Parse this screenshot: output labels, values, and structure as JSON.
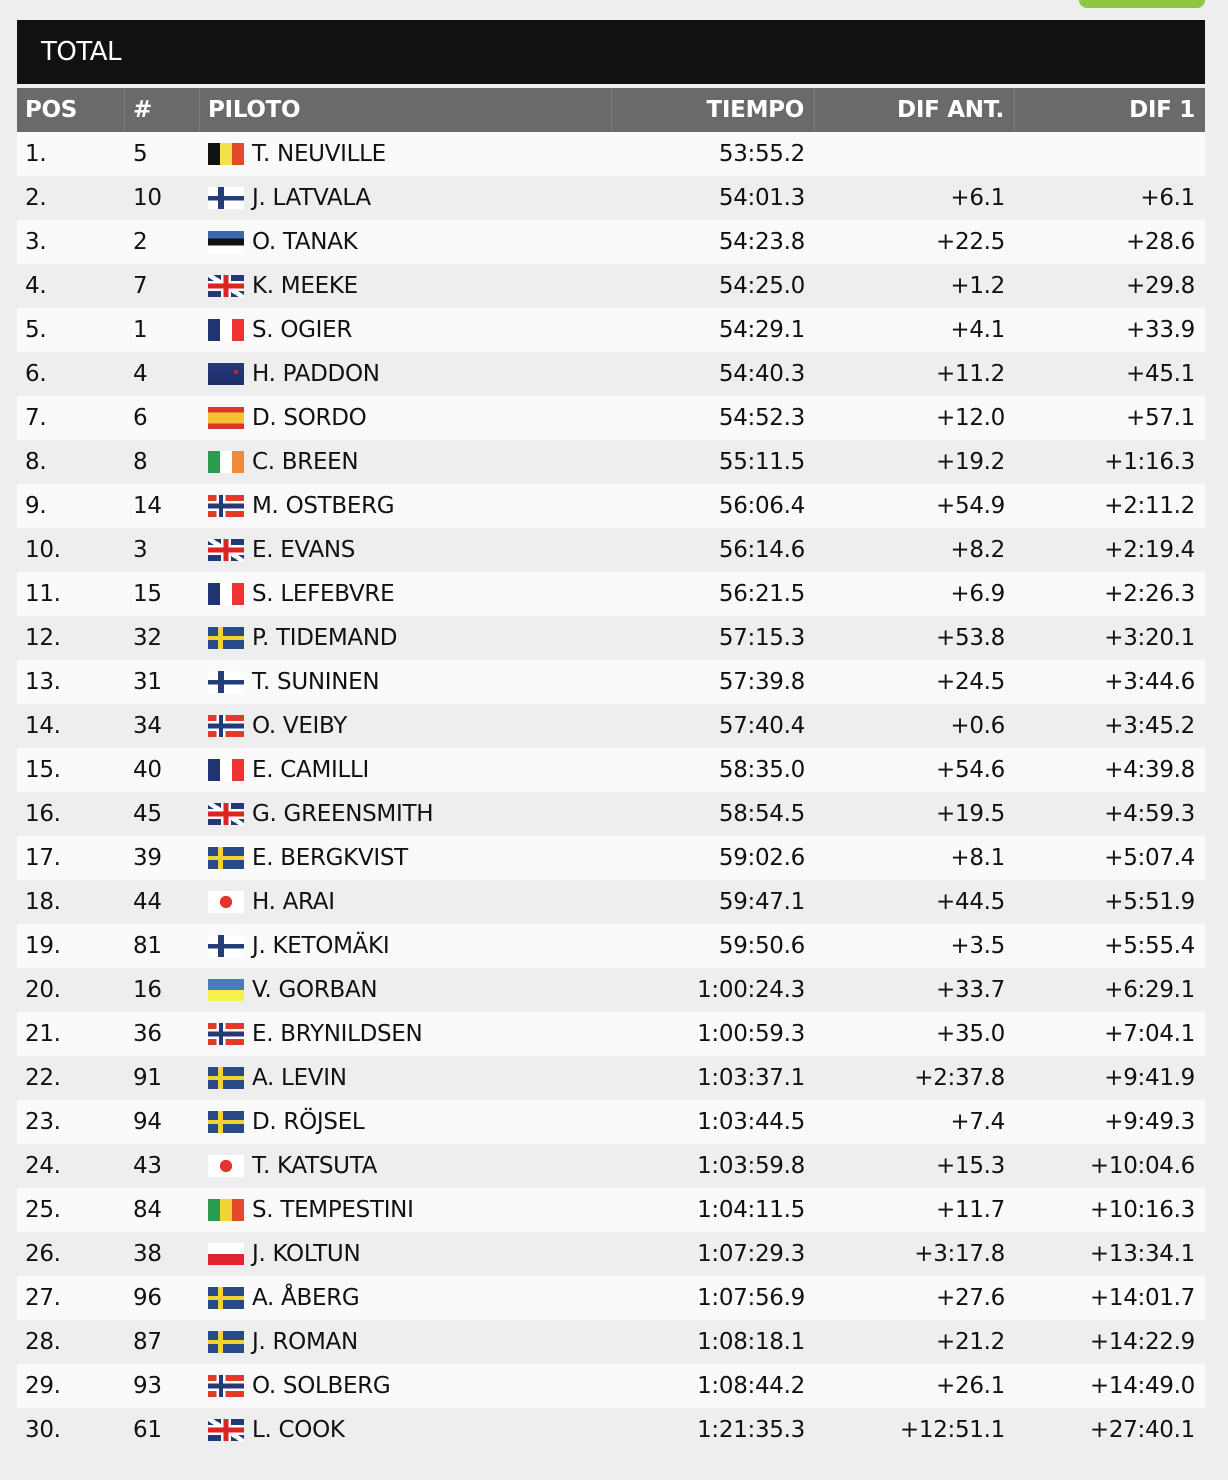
{
  "title": "TOTAL",
  "columns": {
    "pos": "POS",
    "num": "#",
    "pilot": "PILOTO",
    "time": "TIEMPO",
    "dif_prev": "DIF ANT.",
    "dif_first": "DIF 1"
  },
  "rows": [
    {
      "pos": "1.",
      "num": "5",
      "flag": "be",
      "pilot": "T. NEUVILLE",
      "time": "53:55.2",
      "dif_prev": "",
      "dif_first": ""
    },
    {
      "pos": "2.",
      "num": "10",
      "flag": "fi",
      "pilot": "J. LATVALA",
      "time": "54:01.3",
      "dif_prev": "+6.1",
      "dif_first": "+6.1"
    },
    {
      "pos": "3.",
      "num": "2",
      "flag": "ee",
      "pilot": "O. TANAK",
      "time": "54:23.8",
      "dif_prev": "+22.5",
      "dif_first": "+28.6"
    },
    {
      "pos": "4.",
      "num": "7",
      "flag": "gb",
      "pilot": "K. MEEKE",
      "time": "54:25.0",
      "dif_prev": "+1.2",
      "dif_first": "+29.8"
    },
    {
      "pos": "5.",
      "num": "1",
      "flag": "fr",
      "pilot": "S. OGIER",
      "time": "54:29.1",
      "dif_prev": "+4.1",
      "dif_first": "+33.9"
    },
    {
      "pos": "6.",
      "num": "4",
      "flag": "nz",
      "pilot": "H. PADDON",
      "time": "54:40.3",
      "dif_prev": "+11.2",
      "dif_first": "+45.1"
    },
    {
      "pos": "7.",
      "num": "6",
      "flag": "es",
      "pilot": "D. SORDO",
      "time": "54:52.3",
      "dif_prev": "+12.0",
      "dif_first": "+57.1"
    },
    {
      "pos": "8.",
      "num": "8",
      "flag": "ie",
      "pilot": "C. BREEN",
      "time": "55:11.5",
      "dif_prev": "+19.2",
      "dif_first": "+1:16.3"
    },
    {
      "pos": "9.",
      "num": "14",
      "flag": "no",
      "pilot": "M. OSTBERG",
      "time": "56:06.4",
      "dif_prev": "+54.9",
      "dif_first": "+2:11.2"
    },
    {
      "pos": "10.",
      "num": "3",
      "flag": "gb",
      "pilot": "E. EVANS",
      "time": "56:14.6",
      "dif_prev": "+8.2",
      "dif_first": "+2:19.4"
    },
    {
      "pos": "11.",
      "num": "15",
      "flag": "fr",
      "pilot": "S. LEFEBVRE",
      "time": "56:21.5",
      "dif_prev": "+6.9",
      "dif_first": "+2:26.3"
    },
    {
      "pos": "12.",
      "num": "32",
      "flag": "se",
      "pilot": "P. TIDEMAND",
      "time": "57:15.3",
      "dif_prev": "+53.8",
      "dif_first": "+3:20.1"
    },
    {
      "pos": "13.",
      "num": "31",
      "flag": "fi",
      "pilot": "T. SUNINEN",
      "time": "57:39.8",
      "dif_prev": "+24.5",
      "dif_first": "+3:44.6"
    },
    {
      "pos": "14.",
      "num": "34",
      "flag": "no",
      "pilot": "O. VEIBY",
      "time": "57:40.4",
      "dif_prev": "+0.6",
      "dif_first": "+3:45.2"
    },
    {
      "pos": "15.",
      "num": "40",
      "flag": "fr",
      "pilot": "E. CAMILLI",
      "time": "58:35.0",
      "dif_prev": "+54.6",
      "dif_first": "+4:39.8"
    },
    {
      "pos": "16.",
      "num": "45",
      "flag": "gb",
      "pilot": "G. GREENSMITH",
      "time": "58:54.5",
      "dif_prev": "+19.5",
      "dif_first": "+4:59.3"
    },
    {
      "pos": "17.",
      "num": "39",
      "flag": "se",
      "pilot": "E. BERGKVIST",
      "time": "59:02.6",
      "dif_prev": "+8.1",
      "dif_first": "+5:07.4"
    },
    {
      "pos": "18.",
      "num": "44",
      "flag": "jp",
      "pilot": "H. ARAI",
      "time": "59:47.1",
      "dif_prev": "+44.5",
      "dif_first": "+5:51.9"
    },
    {
      "pos": "19.",
      "num": "81",
      "flag": "fi",
      "pilot": "J. KETOMÄKI",
      "time": "59:50.6",
      "dif_prev": "+3.5",
      "dif_first": "+5:55.4"
    },
    {
      "pos": "20.",
      "num": "16",
      "flag": "ua",
      "pilot": "V. GORBAN",
      "time": "1:00:24.3",
      "dif_prev": "+33.7",
      "dif_first": "+6:29.1"
    },
    {
      "pos": "21.",
      "num": "36",
      "flag": "no",
      "pilot": "E. BRYNILDSEN",
      "time": "1:00:59.3",
      "dif_prev": "+35.0",
      "dif_first": "+7:04.1"
    },
    {
      "pos": "22.",
      "num": "91",
      "flag": "se",
      "pilot": "A. LEVIN",
      "time": "1:03:37.1",
      "dif_prev": "+2:37.8",
      "dif_first": "+9:41.9"
    },
    {
      "pos": "23.",
      "num": "94",
      "flag": "se",
      "pilot": "D. RÖJSEL",
      "time": "1:03:44.5",
      "dif_prev": "+7.4",
      "dif_first": "+9:49.3"
    },
    {
      "pos": "24.",
      "num": "43",
      "flag": "jp",
      "pilot": "T. KATSUTA",
      "time": "1:03:59.8",
      "dif_prev": "+15.3",
      "dif_first": "+10:04.6"
    },
    {
      "pos": "25.",
      "num": "84",
      "flag": "it",
      "pilot": "S. TEMPESTINI",
      "time": "1:04:11.5",
      "dif_prev": "+11.7",
      "dif_first": "+10:16.3"
    },
    {
      "pos": "26.",
      "num": "38",
      "flag": "pl",
      "pilot": "J. KOLTUN",
      "time": "1:07:29.3",
      "dif_prev": "+3:17.8",
      "dif_first": "+13:34.1"
    },
    {
      "pos": "27.",
      "num": "96",
      "flag": "se",
      "pilot": "A. ÅBERG",
      "time": "1:07:56.9",
      "dif_prev": "+27.6",
      "dif_first": "+14:01.7"
    },
    {
      "pos": "28.",
      "num": "87",
      "flag": "se",
      "pilot": "J. ROMAN",
      "time": "1:08:18.1",
      "dif_prev": "+21.2",
      "dif_first": "+14:22.9"
    },
    {
      "pos": "29.",
      "num": "93",
      "flag": "no",
      "pilot": "O. SOLBERG",
      "time": "1:08:44.2",
      "dif_prev": "+26.1",
      "dif_first": "+14:49.0"
    },
    {
      "pos": "30.",
      "num": "61",
      "flag": "gb",
      "pilot": "L. COOK",
      "time": "1:21:35.3",
      "dif_prev": "+12:51.1",
      "dif_first": "+27:40.1"
    }
  ],
  "colors": {
    "title_bg": "#111111",
    "header_bg": "#6a6a6a",
    "row_light": "#fafafa",
    "row_dark": "#eeeeee",
    "accent": "#8dc63f"
  }
}
